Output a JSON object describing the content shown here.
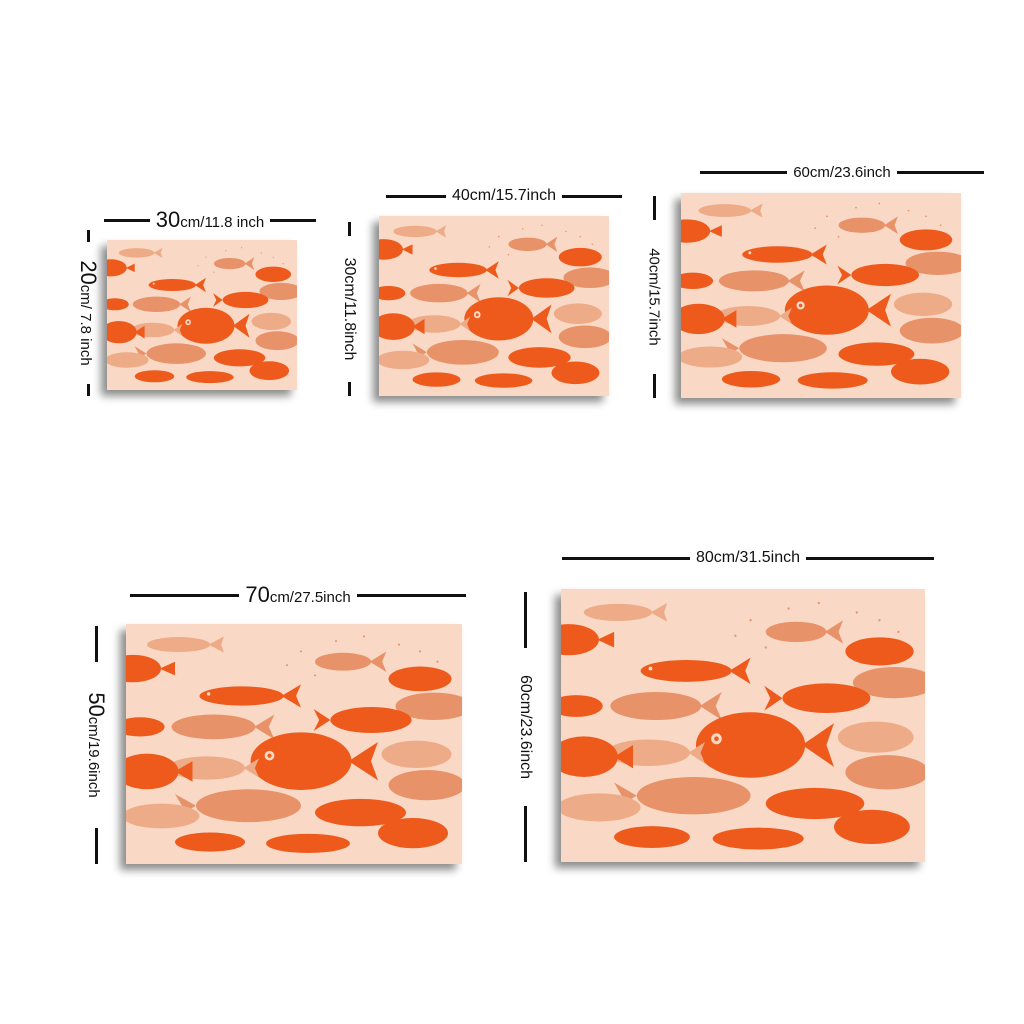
{
  "colors": {
    "canvas_bg": "#f9d9c5",
    "fish_dark": "#ee5a1c",
    "fish_light": "#e8926a",
    "fish_pale": "#eeab88",
    "dimension_line": "#111111"
  },
  "sizes": [
    {
      "width_num": "30",
      "width_unit": "cm/11.8 inch",
      "height_num": "20",
      "height_unit": "cm/ 7.8 inch"
    },
    {
      "width_label": "40cm/15.7inch",
      "height_label": "30cm/11.8inch"
    },
    {
      "width_label": "60cm/23.6inch",
      "height_label": "40cm/15.7inch"
    },
    {
      "width_num": "70",
      "width_unit": "cm/27.5inch",
      "height_num": "50",
      "height_unit": "cm/19.6inch"
    },
    {
      "width_label": "80cm/31.5inch",
      "height_label": "60cm/23.6inch"
    }
  ]
}
